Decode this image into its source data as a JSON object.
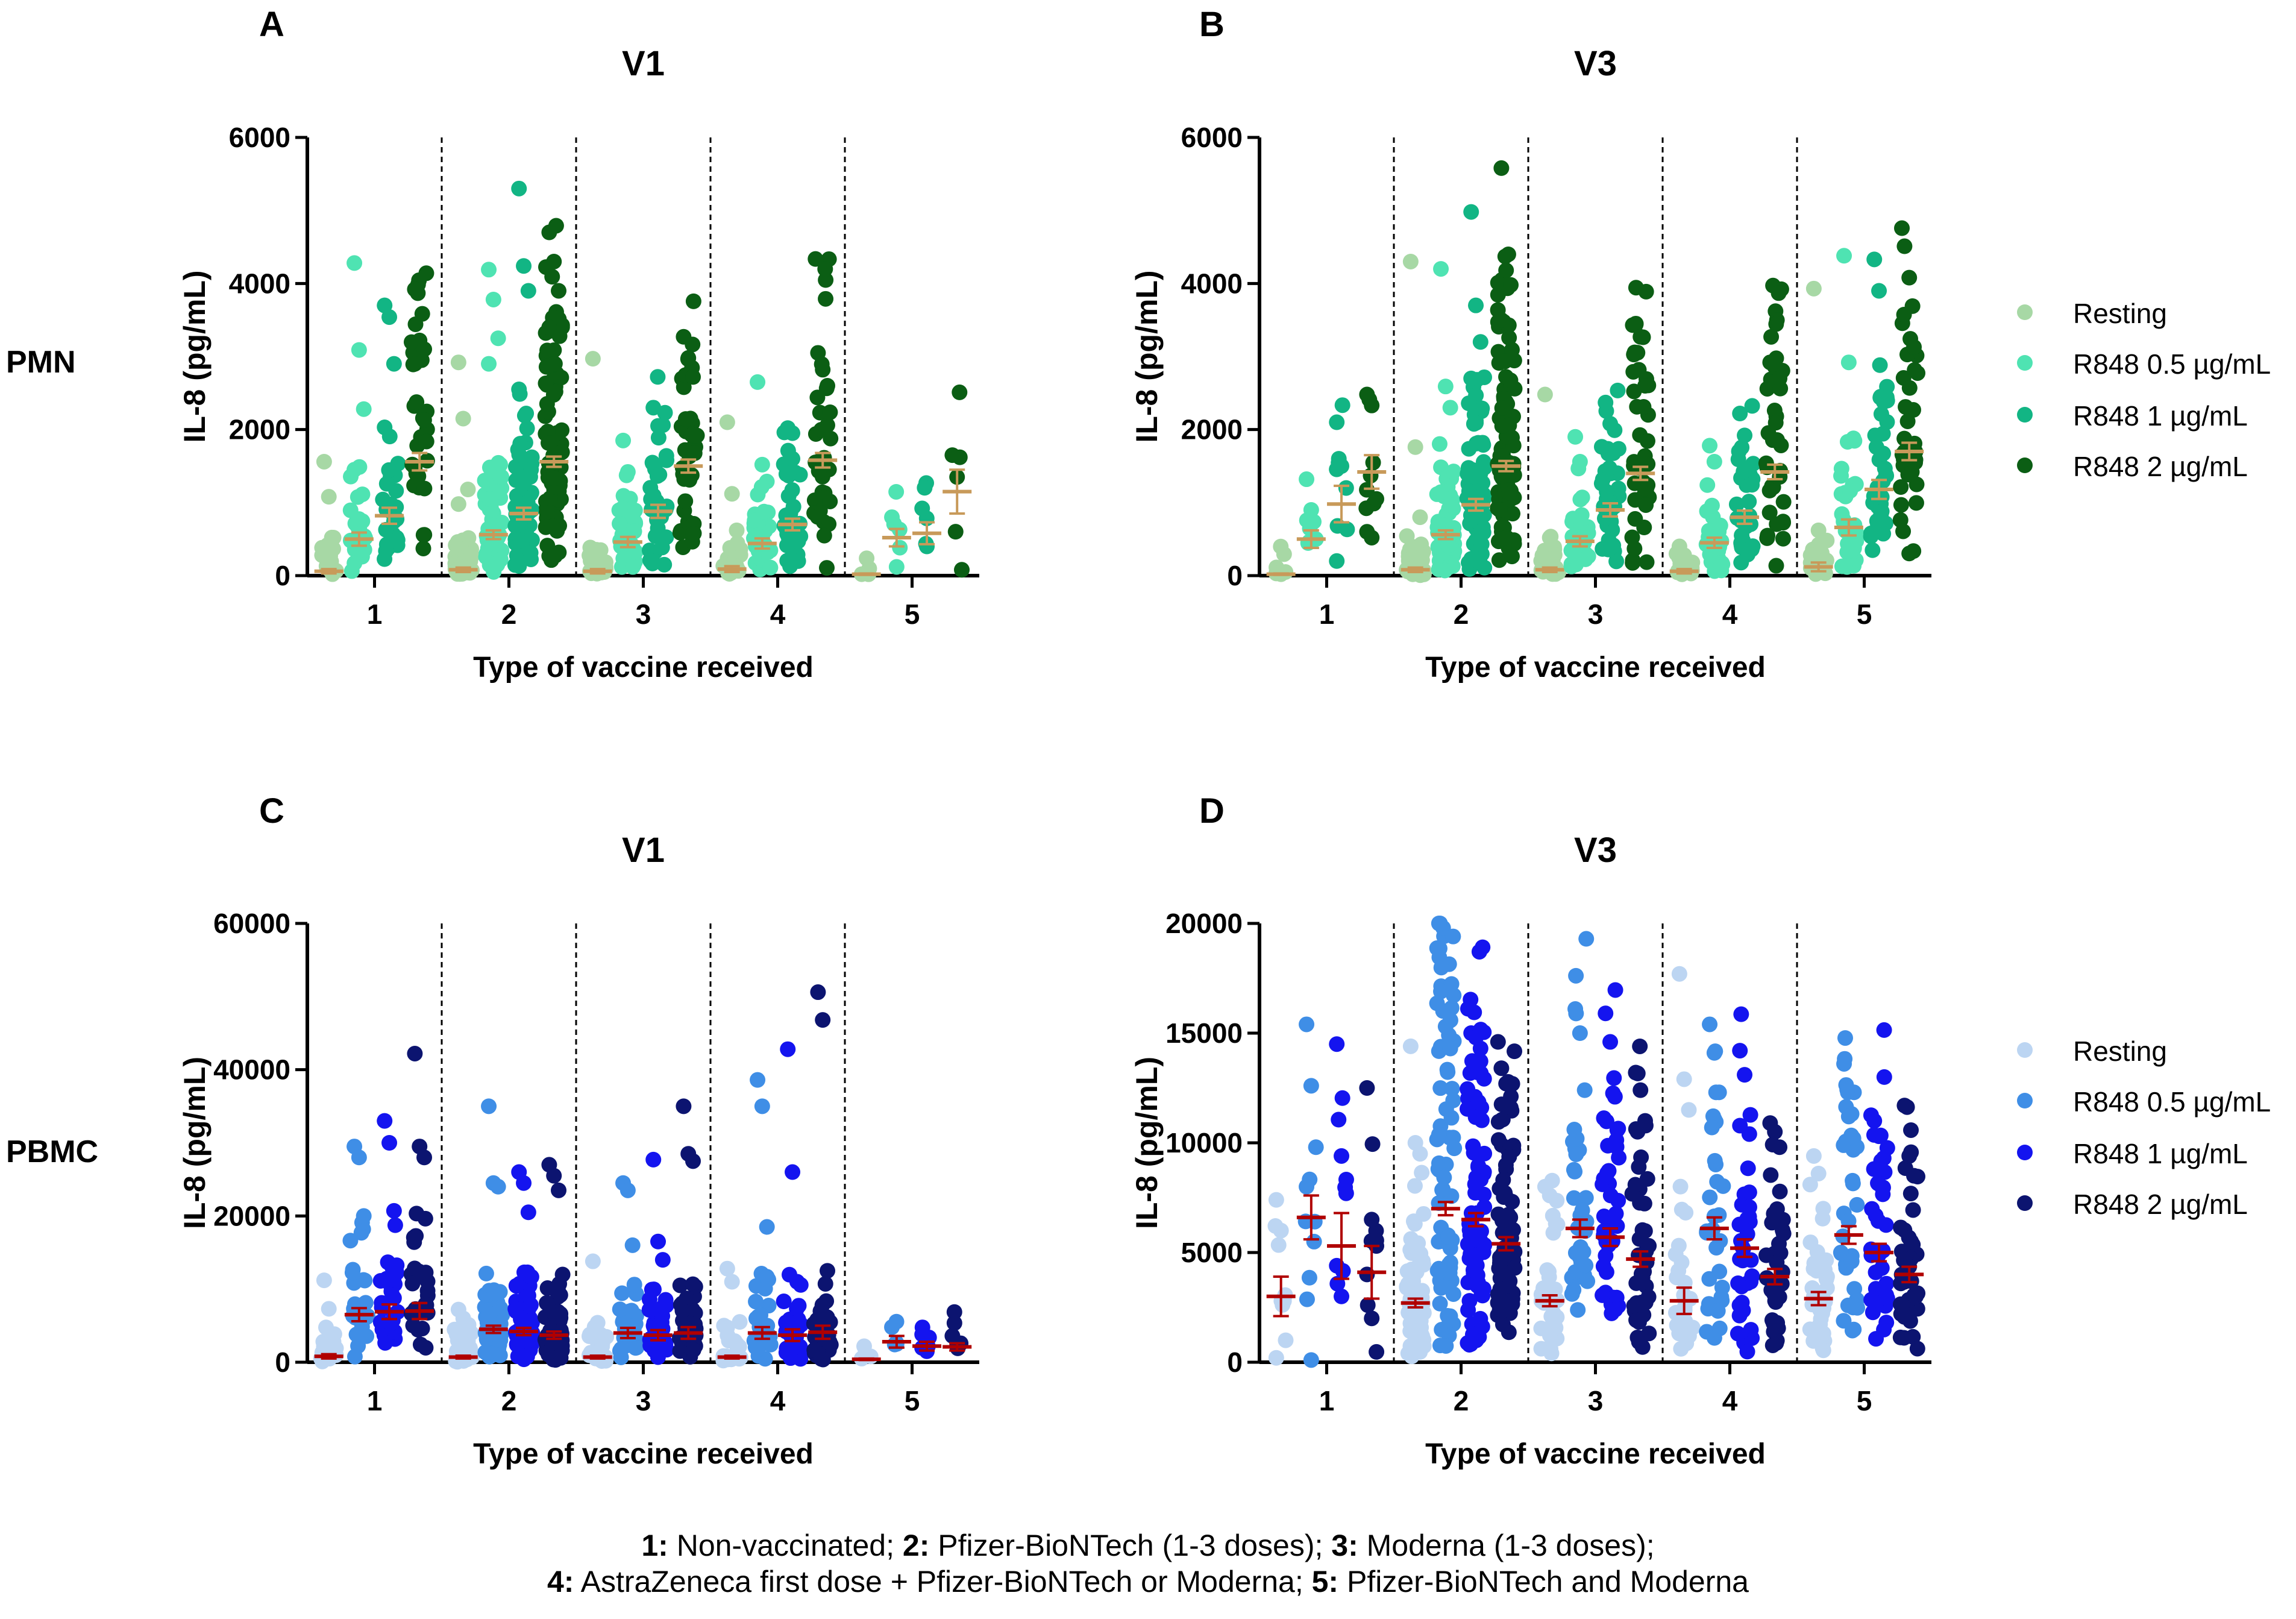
{
  "row_labels": {
    "pmn": "PMN",
    "pbmc": "PBMC"
  },
  "legends": {
    "pmn": {
      "entries": [
        {
          "label": "Resting",
          "color": "#a7d8a5"
        },
        {
          "label": "R848 0.5 µg/mL",
          "color": "#4fe3b2"
        },
        {
          "label": "R848 1 µg/mL",
          "color": "#12b584"
        },
        {
          "label": "R848 2 µg/mL",
          "color": "#0b5e14"
        }
      ]
    },
    "pbmc": {
      "entries": [
        {
          "label": "Resting",
          "color": "#bcd5f2"
        },
        {
          "label": "R848 0.5 µg/mL",
          "color": "#3f8ee6"
        },
        {
          "label": "R848 1 µg/mL",
          "color": "#1414ef"
        },
        {
          "label": "R848 2 µg/mL",
          "color": "#0c1470"
        }
      ]
    }
  },
  "caption": {
    "line1": [
      {
        "b": "1:",
        "t": " Non-vaccinated; "
      },
      {
        "b": "2:",
        "t": " Pfizer-BioNTech (1-3 doses); "
      },
      {
        "b": "3:",
        "t": " Moderna (1-3 doses);"
      }
    ],
    "line2": [
      {
        "b": "4:",
        "t": " AstraZeneca first dose + Pfizer-BioNTech or Moderna; "
      },
      {
        "b": "5:",
        "t": " Pfizer-BioNTech and Moderna"
      }
    ]
  },
  "chart_data": [
    {
      "panel": "A",
      "type": "scatter",
      "title": "V1",
      "cell_type": "PMN",
      "xlabel": "Type of vaccine received",
      "ylabel": "IL-8 (pg/mL)",
      "categories": [
        "1",
        "2",
        "3",
        "4",
        "5"
      ],
      "ylim": [
        0,
        6000
      ],
      "yticks": [
        0,
        2000,
        4000,
        6000
      ],
      "mean_color": "#c89a5a",
      "series": [
        {
          "name": "Resting",
          "means": [
            60,
            80,
            60,
            90,
            20
          ],
          "sem": [
            30,
            30,
            30,
            40,
            10
          ],
          "highlights": [
            [
              1560,
              1080,
              520
            ],
            [
              2920,
              2150,
              1180,
              980
            ],
            [
              2970,
              330,
              150
            ],
            [
              2100,
              1120,
              620
            ],
            [
              20
            ]
          ],
          "counts": [
            16,
            60,
            24,
            22,
            3
          ]
        },
        {
          "name": "R848 0.5 µg/mL",
          "means": [
            500,
            560,
            460,
            440,
            520
          ],
          "sem": [
            90,
            60,
            70,
            70,
            120
          ],
          "highlights": [
            [
              4280,
              3090,
              2280,
              1450
            ],
            [
              4190,
              3780,
              3250,
              2900
            ],
            [
              1850,
              1420
            ],
            [
              2650,
              1520
            ],
            [
              800,
              120
            ]
          ],
          "counts": [
            22,
            60,
            30,
            28,
            4
          ]
        },
        {
          "name": "R848 1 µg/mL",
          "means": [
            820,
            850,
            880,
            700,
            580
          ],
          "sem": [
            110,
            80,
            90,
            80,
            150
          ],
          "highlights": [
            [
              3700,
              3540,
              2900,
              2030
            ],
            [
              5300,
              4240,
              3900,
              2550
            ],
            [
              2300,
              2050
            ],
            [
              2020,
              1600
            ],
            [
              920,
              400
            ]
          ],
          "counts": [
            24,
            70,
            36,
            30,
            4
          ]
        },
        {
          "name": "R848 2 µg/mL",
          "means": [
            1560,
            1560,
            1500,
            1580,
            1150
          ],
          "sem": [
            120,
            70,
            90,
            100,
            300
          ],
          "highlights": [
            [
              3920,
              3220,
              3100,
              2900
            ],
            [
              4700,
              4300,
              3900,
              3400
            ],
            [
              3270,
              2980,
              2720
            ],
            [
              3050,
              2820,
              2600
            ],
            [
              1650,
              1350,
              80
            ]
          ],
          "counts": [
            30,
            80,
            40,
            36,
            3
          ]
        }
      ]
    },
    {
      "panel": "B",
      "type": "scatter",
      "title": "V3",
      "cell_type": "PMN",
      "xlabel": "Type of vaccine received",
      "ylabel": "IL-8 (pg/mL)",
      "categories": [
        "1",
        "2",
        "3",
        "4",
        "5"
      ],
      "ylim": [
        0,
        6000
      ],
      "yticks": [
        0,
        2000,
        4000,
        6000
      ],
      "mean_color": "#c89a5a",
      "series": [
        {
          "name": "Resting",
          "means": [
            20,
            80,
            80,
            60,
            120
          ],
          "sem": [
            10,
            30,
            30,
            30,
            60
          ],
          "highlights": [
            [
              30,
              20
            ],
            [
              4300,
              1760,
              800
            ],
            [
              2480,
              520
            ],
            [
              400,
              280
            ],
            [
              3930,
              620
            ]
          ],
          "counts": [
            4,
            55,
            26,
            24,
            16
          ]
        },
        {
          "name": "R848 0.5 µg/mL",
          "means": [
            500,
            560,
            470,
            450,
            660
          ],
          "sem": [
            120,
            60,
            70,
            70,
            110
          ],
          "highlights": [
            [
              1320,
              900,
              500
            ],
            [
              4200,
              2590,
              2300
            ],
            [
              1900,
              1560
            ],
            [
              1780,
              1560
            ],
            [
              4380,
              2920,
              1880
            ]
          ],
          "counts": [
            6,
            60,
            30,
            28,
            30
          ]
        },
        {
          "name": "R848 1 µg/mL",
          "means": [
            980,
            970,
            900,
            800,
            1180
          ],
          "sem": [
            250,
            80,
            90,
            90,
            130
          ],
          "highlights": [
            [
              2100,
              1500,
              1200,
              200
            ],
            [
              4980,
              3700,
              3200,
              2700
            ],
            [
              2370,
              2080
            ],
            [
              2220,
              1920
            ],
            [
              4330,
              3900,
              2380
            ]
          ],
          "counts": [
            6,
            70,
            36,
            30,
            34
          ]
        },
        {
          "name": "R848 2 µg/mL",
          "means": [
            1420,
            1500,
            1400,
            1420,
            1700
          ],
          "sem": [
            230,
            70,
            90,
            100,
            120
          ],
          "highlights": [
            [
              2480,
              2330,
              1050,
              600,
              520
            ],
            [
              5580,
              4180,
              3980,
              3500
            ],
            [
              3440,
              3270,
              2600
            ],
            [
              2920,
              2860,
              2700
            ],
            [
              4510,
              4080,
              3130
            ]
          ],
          "counts": [
            6,
            80,
            40,
            36,
            34
          ]
        }
      ]
    },
    {
      "panel": "C",
      "type": "scatter",
      "title": "V1",
      "cell_type": "PBMC",
      "xlabel": "Type of vaccine received",
      "ylabel": "IL-8 (pg/mL)",
      "categories": [
        "1",
        "2",
        "3",
        "4",
        "5"
      ],
      "ylim": [
        0,
        60000
      ],
      "yticks": [
        0,
        20000,
        40000,
        60000
      ],
      "mean_color": "#b00000",
      "series": [
        {
          "name": "Resting",
          "means": [
            800,
            700,
            700,
            700,
            400
          ],
          "sem": [
            300,
            200,
            200,
            200,
            100
          ],
          "highlights": [
            [
              11200,
              7300,
              2800
            ],
            [
              7200,
              6000,
              2900
            ],
            [
              13800,
              5400,
              2500
            ],
            [
              12800,
              11000,
              2500
            ],
            [
              500
            ]
          ],
          "counts": [
            18,
            50,
            24,
            22,
            3
          ]
        },
        {
          "name": "R848 0.5 µg/mL",
          "means": [
            6500,
            4500,
            4000,
            4000,
            2800
          ],
          "sem": [
            900,
            500,
            700,
            800,
            800
          ],
          "highlights": [
            [
              29500,
              28000,
              20000
            ],
            [
              35000,
              24500,
              24000
            ],
            [
              24500,
              23500,
              16000
            ],
            [
              38600,
              35000,
              18500
            ],
            [
              4800,
              2500
            ]
          ],
          "counts": [
            24,
            65,
            30,
            28,
            4
          ]
        },
        {
          "name": "R848 1 µg/mL",
          "means": [
            6900,
            4200,
            3700,
            3700,
            2200
          ],
          "sem": [
            1000,
            500,
            700,
            800,
            600
          ],
          "highlights": [
            [
              33000,
              30000,
              20700
            ],
            [
              26000,
              24500,
              20500
            ],
            [
              27700,
              16500,
              14000
            ],
            [
              42800,
              26000,
              11000
            ],
            [
              3800,
              1500
            ]
          ],
          "counts": [
            26,
            70,
            34,
            30,
            4
          ]
        },
        {
          "name": "R848 2 µg/mL",
          "means": [
            7000,
            3700,
            4000,
            4100,
            2100
          ],
          "sem": [
            1100,
            500,
            800,
            900,
            500
          ],
          "highlights": [
            [
              42200,
              29500,
              28000
            ],
            [
              27000,
              25500,
              23500
            ],
            [
              35000,
              28500,
              27500
            ],
            [
              50600,
              46800,
              12500
            ],
            [
              3600,
              2200
            ]
          ],
          "counts": [
            28,
            75,
            38,
            34,
            4
          ]
        }
      ]
    },
    {
      "panel": "D",
      "type": "scatter",
      "title": "V3",
      "cell_type": "PBMC",
      "xlabel": "Type of vaccine received",
      "ylabel": "IL-8 (pg/mL)",
      "categories": [
        "1",
        "2",
        "3",
        "4",
        "5"
      ],
      "ylim": [
        0,
        20000
      ],
      "yticks": [
        0,
        5000,
        10000,
        15000,
        20000
      ],
      "mean_color": "#b00000",
      "series": [
        {
          "name": "Resting",
          "means": [
            3000,
            2700,
            2800,
            2800,
            2900
          ],
          "sem": [
            900,
            200,
            250,
            600,
            300
          ],
          "highlights": [
            [
              7400,
              6000,
              1000,
              200
            ],
            [
              14400,
              10000,
              9500
            ],
            [
              8000,
              7600
            ],
            [
              17700,
              12900,
              11500
            ],
            [
              9400,
              8600,
              7000
            ]
          ],
          "counts": [
            6,
            70,
            34,
            26,
            34
          ]
        },
        {
          "name": "R848 0.5 µg/mL",
          "means": [
            6600,
            7000,
            6100,
            6100,
            5800
          ],
          "sem": [
            1000,
            300,
            400,
            500,
            400
          ],
          "highlights": [
            [
              15400,
              12600,
              9800,
              8000,
              100
            ],
            [
              16900,
              15300,
              14300
            ],
            [
              16100,
              15000,
              12400
            ],
            [
              15400,
              14100,
              12300
            ],
            [
              13600,
              11200,
              10200
            ]
          ],
          "counts": [
            6,
            75,
            38,
            30,
            36
          ]
        },
        {
          "name": "R848 1 µg/mL",
          "means": [
            5300,
            6500,
            5700,
            5200,
            5000
          ],
          "sem": [
            1500,
            300,
            400,
            400,
            400
          ],
          "highlights": [
            [
              14500,
              9400,
              7700,
              4400,
              3000
            ],
            [
              15000,
              14800,
              14300
            ],
            [
              15900,
              14600,
              12100
            ],
            [
              14200,
              13100,
              10400
            ],
            [
              11000,
              10300,
              9300
            ]
          ],
          "counts": [
            6,
            80,
            40,
            34,
            38
          ]
        },
        {
          "name": "R848 2 µg/mL",
          "means": [
            4100,
            5400,
            4700,
            3900,
            4000
          ],
          "sem": [
            1200,
            300,
            350,
            350,
            350
          ],
          "highlights": [
            [
              12500,
              6500,
              5300,
              4000,
              2000
            ],
            [
              13400,
              12700,
              11600
            ],
            [
              13200,
              12400,
              11000
            ],
            [
              10900,
              10500,
              9800
            ],
            [
              11700,
              9400,
              8500
            ]
          ],
          "counts": [
            6,
            80,
            40,
            34,
            38
          ]
        }
      ]
    }
  ]
}
